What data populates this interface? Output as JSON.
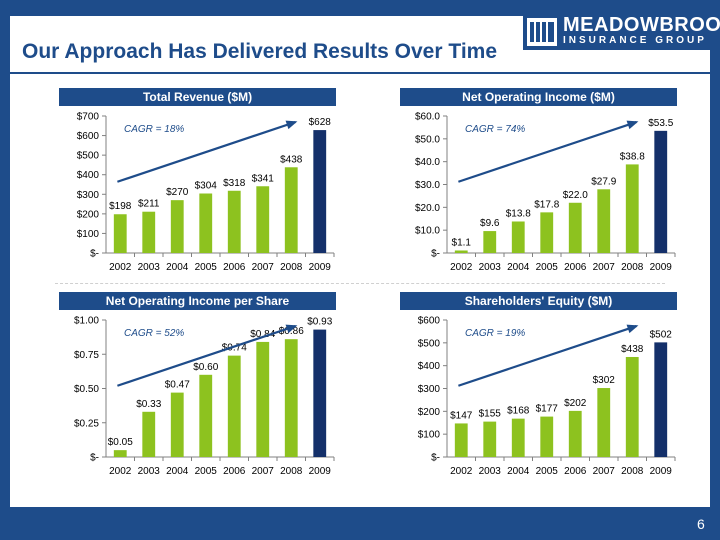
{
  "slide": {
    "title": "Our Approach Has Delivered Results Over Time",
    "page_number": "6"
  },
  "logo": {
    "name": "MEADOWBROOK",
    "tagline": "INSURANCE GROUP"
  },
  "colors": {
    "navy": "#1e4c8a",
    "bar_green": "#8dc21f",
    "bar_last": "#14306a",
    "arrow": "#1e4c8a"
  },
  "chart_data": [
    {
      "type": "bar",
      "title": "Total Revenue ($M)",
      "categories": [
        "2002",
        "2003",
        "2004",
        "2005",
        "2006",
        "2007",
        "2008",
        "2009"
      ],
      "values": [
        198,
        211,
        270,
        304,
        318,
        341,
        438,
        628
      ],
      "labels": [
        "$198",
        "$211",
        "$270",
        "$304",
        "$318",
        "$341",
        "$438",
        "$628"
      ],
      "ylim": [
        0,
        700
      ],
      "yticks": [
        0,
        100,
        200,
        300,
        400,
        500,
        600,
        700
      ],
      "ytick_labels": [
        "$-",
        "$100",
        "$200",
        "$300",
        "$400",
        "$500",
        "$600",
        "$700"
      ],
      "annotation": "CAGR = 18%",
      "grid": false
    },
    {
      "type": "bar",
      "title": "Net Operating Income ($M)",
      "categories": [
        "2002",
        "2003",
        "2004",
        "2005",
        "2006",
        "2007",
        "2008",
        "2009"
      ],
      "values": [
        1.1,
        9.6,
        13.8,
        17.8,
        22.0,
        27.9,
        38.8,
        53.5
      ],
      "labels": [
        "$1.1",
        "$9.6",
        "$13.8",
        "$17.8",
        "$22.0",
        "$27.9",
        "$38.8",
        "$53.5"
      ],
      "ylim": [
        0,
        60
      ],
      "yticks": [
        0,
        10,
        20,
        30,
        40,
        50,
        60
      ],
      "ytick_labels": [
        "$-",
        "$10.0",
        "$20.0",
        "$30.0",
        "$40.0",
        "$50.0",
        "$60.0"
      ],
      "annotation": "CAGR = 74%",
      "grid": false
    },
    {
      "type": "bar",
      "title": "Net Operating Income per Share",
      "categories": [
        "2002",
        "2003",
        "2004",
        "2005",
        "2006",
        "2007",
        "2008",
        "2009"
      ],
      "values": [
        0.05,
        0.33,
        0.47,
        0.6,
        0.74,
        0.84,
        0.86,
        0.93
      ],
      "labels": [
        "$0.05",
        "$0.33",
        "$0.47",
        "$0.60",
        "$0.74",
        "$0.84",
        "$0.86",
        "$0.93"
      ],
      "ylim": [
        0,
        1.0
      ],
      "yticks": [
        0,
        0.25,
        0.5,
        0.75,
        1.0
      ],
      "ytick_labels": [
        "$-",
        "$0.25",
        "$0.50",
        "$0.75",
        "$1.00"
      ],
      "annotation": "CAGR = 52%",
      "grid": false
    },
    {
      "type": "bar",
      "title": "Shareholders' Equity ($M)",
      "categories": [
        "2002",
        "2003",
        "2004",
        "2005",
        "2006",
        "2007",
        "2008",
        "2009"
      ],
      "values": [
        147,
        155,
        168,
        177,
        202,
        302,
        438,
        502
      ],
      "labels": [
        "$147",
        "$155",
        "$168",
        "$177",
        "$202",
        "$302",
        "$438",
        "$502"
      ],
      "ylim": [
        0,
        600
      ],
      "yticks": [
        0,
        100,
        200,
        300,
        400,
        500,
        600
      ],
      "ytick_labels": [
        "$-",
        "$100",
        "$200",
        "$300",
        "$400",
        "$500",
        "$600"
      ],
      "annotation": "CAGR = 19%",
      "grid": false
    }
  ]
}
